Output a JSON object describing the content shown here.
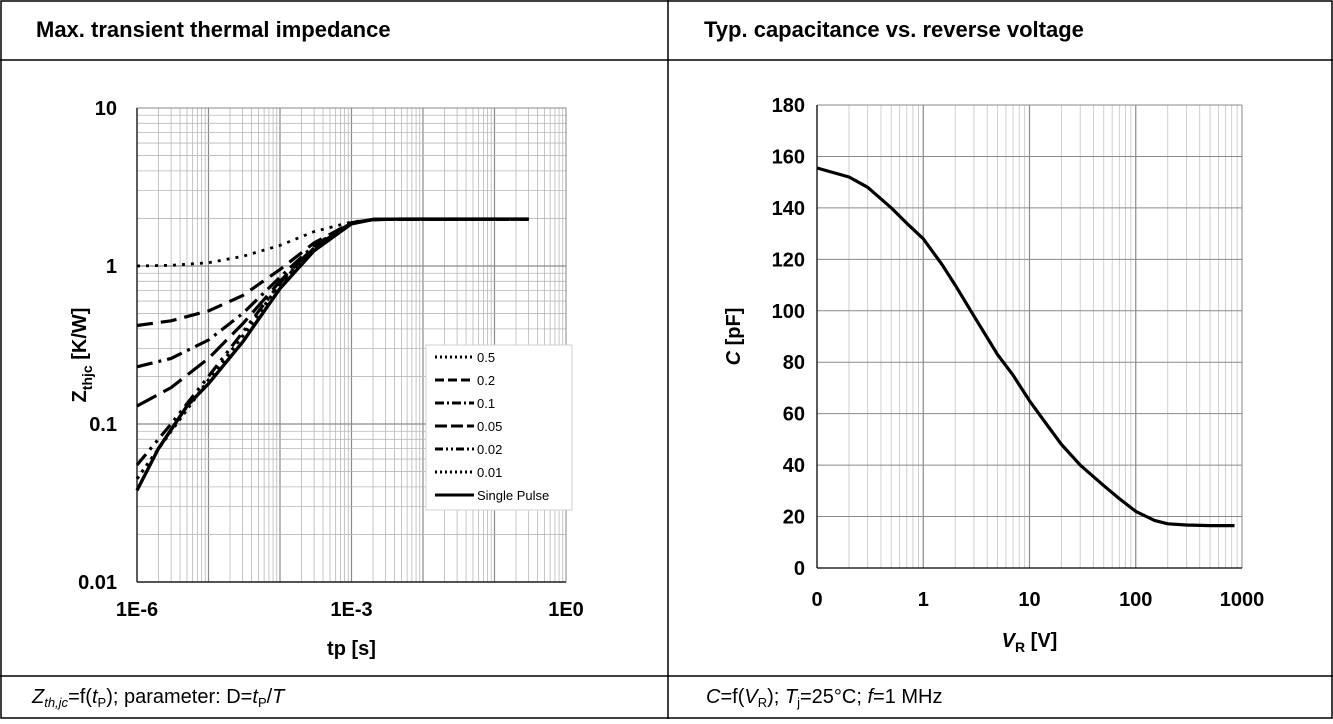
{
  "left_panel": {
    "title": "Max. transient thermal impedance",
    "footer": {
      "z": "Z",
      "z_sub": "th,jc",
      "eq": "=f(",
      "t": "t",
      "t_sub": "P",
      "mid": "); parameter: D=",
      "t2": "t",
      "t2_sub": "P",
      "slash": "/",
      "T": "T"
    }
  },
  "right_panel": {
    "title": "Typ. capacitance vs. reverse voltage",
    "footer": {
      "c": "C",
      "eq": "=f(",
      "v": "V",
      "v_sub": "R",
      "mid": "); ",
      "tj": "T",
      "tj_sub": "j",
      "tj_val": "=25°C; ",
      "f": "f",
      "f_val": "=1 MHz"
    }
  },
  "chart_data": [
    {
      "type": "line",
      "title": "Max. transient thermal impedance",
      "xlabel": "tp [s]",
      "ylabel_main": "Z",
      "ylabel_sub": "thjc",
      "ylabel_unit": " [K/W]",
      "x_scale": "log",
      "y_scale": "log",
      "xlim": [
        1e-06,
        1
      ],
      "ylim": [
        0.01,
        10
      ],
      "x_ticks": [
        {
          "value": 1e-06,
          "label": "1E-6"
        },
        {
          "value": 0.001,
          "label": "1E-3"
        },
        {
          "value": 1,
          "label": "1E0"
        }
      ],
      "y_ticks": [
        {
          "value": 0.01,
          "label": "0.01"
        },
        {
          "value": 0.1,
          "label": "0.1"
        },
        {
          "value": 1,
          "label": "1"
        },
        {
          "value": 10,
          "label": "10"
        }
      ],
      "grid": true,
      "legend_position": "right-center",
      "series": [
        {
          "name": "0.5",
          "dash": "3,6",
          "points": [
            [
              1e-06,
              1.0
            ],
            [
              3e-06,
              1.01
            ],
            [
              1e-05,
              1.05
            ],
            [
              3e-05,
              1.15
            ],
            [
              0.0001,
              1.35
            ],
            [
              0.0003,
              1.65
            ],
            [
              0.001,
              1.9
            ],
            [
              0.002,
              1.97
            ],
            [
              0.005,
              1.98
            ],
            [
              0.3,
              1.98
            ]
          ]
        },
        {
          "name": "0.2",
          "dash": "16,8",
          "points": [
            [
              1e-06,
              0.42
            ],
            [
              3e-06,
              0.45
            ],
            [
              1e-05,
              0.52
            ],
            [
              3e-05,
              0.65
            ],
            [
              0.0001,
              0.95
            ],
            [
              0.0003,
              1.4
            ],
            [
              0.001,
              1.88
            ],
            [
              0.002,
              1.97
            ],
            [
              0.005,
              1.98
            ],
            [
              0.3,
              1.98
            ]
          ]
        },
        {
          "name": "0.1",
          "dash": "16,6,3,6",
          "points": [
            [
              1e-06,
              0.23
            ],
            [
              3e-06,
              0.26
            ],
            [
              1e-05,
              0.34
            ],
            [
              3e-05,
              0.5
            ],
            [
              0.0001,
              0.85
            ],
            [
              0.0003,
              1.35
            ],
            [
              0.001,
              1.87
            ],
            [
              0.002,
              1.97
            ],
            [
              0.005,
              1.98
            ],
            [
              0.3,
              1.98
            ]
          ]
        },
        {
          "name": "0.05",
          "dash": "22,8",
          "points": [
            [
              1e-06,
              0.13
            ],
            [
              3e-06,
              0.17
            ],
            [
              1e-05,
              0.26
            ],
            [
              3e-05,
              0.43
            ],
            [
              0.0001,
              0.8
            ],
            [
              0.0003,
              1.32
            ],
            [
              0.001,
              1.86
            ],
            [
              0.002,
              1.97
            ],
            [
              0.005,
              1.98
            ],
            [
              0.3,
              1.98
            ]
          ]
        },
        {
          "name": "0.02",
          "dash": "14,6,3,6,3,6",
          "points": [
            [
              1e-06,
              0.055
            ],
            [
              3e-06,
              0.1
            ],
            [
              1e-05,
              0.2
            ],
            [
              3e-05,
              0.38
            ],
            [
              0.0001,
              0.78
            ],
            [
              0.0003,
              1.3
            ],
            [
              0.001,
              1.86
            ],
            [
              0.002,
              1.97
            ],
            [
              0.005,
              1.98
            ],
            [
              0.3,
              1.98
            ]
          ]
        },
        {
          "name": "0.01",
          "dash": "3,5",
          "points": [
            [
              1e-06,
              0.045
            ],
            [
              3e-06,
              0.09
            ],
            [
              1e-05,
              0.19
            ],
            [
              3e-05,
              0.36
            ],
            [
              0.0001,
              0.77
            ],
            [
              0.0003,
              1.3
            ],
            [
              0.001,
              1.86
            ],
            [
              0.002,
              1.97
            ],
            [
              0.005,
              1.98
            ],
            [
              0.3,
              1.98
            ]
          ]
        },
        {
          "name": "Single Pulse",
          "dash": "",
          "points": [
            [
              1e-06,
              0.038
            ],
            [
              2e-06,
              0.07
            ],
            [
              5e-06,
              0.13
            ],
            [
              1e-05,
              0.18
            ],
            [
              3e-05,
              0.33
            ],
            [
              0.0001,
              0.72
            ],
            [
              0.0003,
              1.25
            ],
            [
              0.001,
              1.85
            ],
            [
              0.002,
              1.97
            ],
            [
              0.005,
              1.98
            ],
            [
              0.3,
              1.98
            ]
          ]
        }
      ]
    },
    {
      "type": "line",
      "title": "Typ. capacitance vs. reverse voltage",
      "xlabel_main": "V",
      "xlabel_sub": "R",
      "xlabel_unit": " [V]",
      "ylabel_main": "C",
      "ylabel_unit": " [pF]",
      "x_scale": "log",
      "xlim": [
        0.1,
        1000
      ],
      "ylim": [
        0,
        180
      ],
      "x_ticks": [
        {
          "value": 0.1,
          "label": "0"
        },
        {
          "value": 1,
          "label": "1"
        },
        {
          "value": 10,
          "label": "10"
        },
        {
          "value": 100,
          "label": "100"
        },
        {
          "value": 1000,
          "label": "1000"
        }
      ],
      "y_ticks": [
        0,
        20,
        40,
        60,
        80,
        100,
        120,
        140,
        160,
        180
      ],
      "grid": true,
      "series": [
        {
          "name": "",
          "points": [
            [
              0.1,
              155.5
            ],
            [
              0.2,
              152
            ],
            [
              0.3,
              148
            ],
            [
              0.5,
              140
            ],
            [
              0.7,
              134
            ],
            [
              1,
              128
            ],
            [
              1.5,
              118
            ],
            [
              2,
              110
            ],
            [
              3,
              98
            ],
            [
              5,
              83
            ],
            [
              7,
              75
            ],
            [
              10,
              65
            ],
            [
              15,
              55
            ],
            [
              20,
              48
            ],
            [
              30,
              40
            ],
            [
              50,
              32
            ],
            [
              70,
              27
            ],
            [
              100,
              22
            ],
            [
              150,
              18.5
            ],
            [
              200,
              17.2
            ],
            [
              300,
              16.7
            ],
            [
              500,
              16.5
            ],
            [
              850,
              16.5
            ]
          ]
        }
      ]
    }
  ]
}
